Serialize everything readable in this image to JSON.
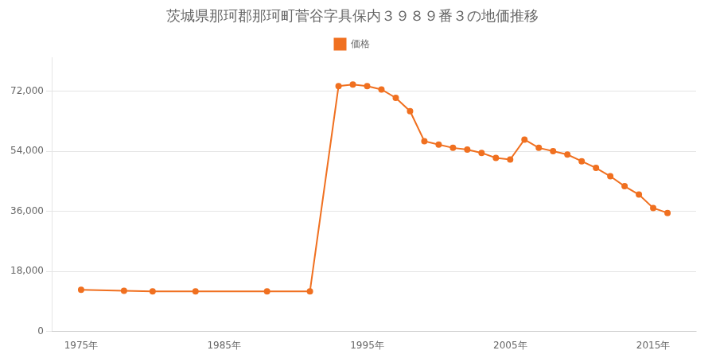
{
  "chart_data": {
    "type": "line",
    "title": "茨城県那珂郡那珂町菅谷字具保内３９８９番３の地価推移",
    "x": [
      1975,
      1978,
      1980,
      1983,
      1988,
      1991,
      1993,
      1994,
      1995,
      1996,
      1997,
      1998,
      1999,
      2000,
      2001,
      2002,
      2003,
      2004,
      2005,
      2006,
      2007,
      2008,
      2009,
      2010,
      2011,
      2012,
      2013,
      2014,
      2015,
      2016
    ],
    "series": [
      {
        "name": "価格",
        "color": "#F07020",
        "marker": "circle",
        "values": [
          12500,
          12200,
          12000,
          12000,
          12000,
          12000,
          73500,
          74000,
          73500,
          72500,
          70000,
          66000,
          57000,
          56000,
          55000,
          54500,
          53500,
          52000,
          51500,
          57500,
          55000,
          54000,
          53000,
          51000,
          49000,
          46500,
          43500,
          41000,
          37000,
          35500
        ]
      }
    ],
    "xlim": [
      1973,
      2018
    ],
    "xticks": [
      {
        "value": 1975,
        "label": "1975年"
      },
      {
        "value": 1985,
        "label": "1985年"
      },
      {
        "value": 1995,
        "label": "1995年"
      },
      {
        "value": 2005,
        "label": "2005年"
      },
      {
        "value": 2015,
        "label": "2015年"
      }
    ],
    "ylim": [
      0,
      82000
    ],
    "yticks": [
      0,
      {
        "value": 18000,
        "label": "18,000"
      },
      {
        "value": 36000,
        "label": "36,000"
      },
      {
        "value": 54000,
        "label": "54,000"
      },
      {
        "value": 72000,
        "label": "72,000"
      }
    ],
    "grid": true,
    "legend": "top"
  }
}
